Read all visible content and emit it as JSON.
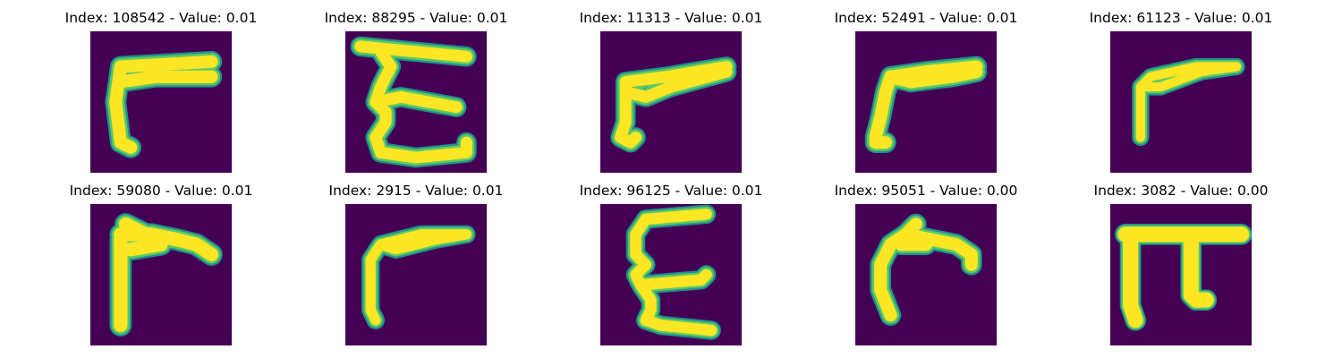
{
  "colors": {
    "background": "#440154",
    "edge": "#21918c",
    "mid": "#5ec962",
    "stroke": "#fde725"
  },
  "panels": [
    {
      "title": "Index: 108542 - Value: 0.01",
      "glyph": "gamma-like character"
    },
    {
      "title": "Index: 88295 - Value: 0.01",
      "glyph": "epsilon-like character"
    },
    {
      "title": "Index: 11313 - Value: 0.01",
      "glyph": "gamma-like character"
    },
    {
      "title": "Index: 52491 - Value: 0.01",
      "glyph": "gamma-like character"
    },
    {
      "title": "Index: 61123 - Value: 0.01",
      "glyph": "gamma-like character"
    },
    {
      "title": "Index: 59080 - Value: 0.01",
      "glyph": "gamma-like character"
    },
    {
      "title": "Index: 2915 - Value: 0.01",
      "glyph": "gamma-like character"
    },
    {
      "title": "Index: 96125 - Value: 0.01",
      "glyph": "epsilon-like character"
    },
    {
      "title": "Index: 95051 - Value: 0.00",
      "glyph": "gamma-like character"
    },
    {
      "title": "Index: 3082 - Value: 0.00",
      "glyph": "pi-like character"
    }
  ]
}
